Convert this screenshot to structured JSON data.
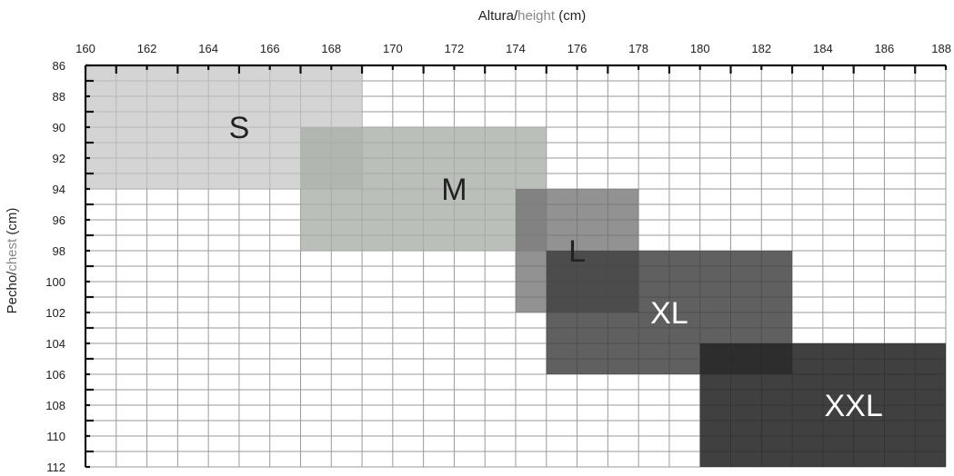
{
  "chart_data": {
    "type": "heatmap",
    "x_axis": {
      "label_main": "Altura/",
      "label_alt": "height",
      "label_unit": " (cm)",
      "min": 160,
      "max": 188,
      "tick_step": 2,
      "minor_step": 1,
      "position": "top"
    },
    "y_axis": {
      "label_main": "Pecho/",
      "label_alt": "chest",
      "label_unit": " (cm)",
      "min": 86,
      "max": 112,
      "tick_step": 2,
      "minor_step": 1,
      "inverted": true
    },
    "grid": true,
    "regions": [
      {
        "name": "S",
        "x": [
          160,
          169
        ],
        "y": [
          86,
          94
        ],
        "color": "#c4c4c3",
        "opacity": 0.72,
        "text_color": "#222222"
      },
      {
        "name": "M",
        "x": [
          167,
          175
        ],
        "y": [
          90,
          98
        ],
        "color": "#a6ada6",
        "opacity": 0.78,
        "text_color": "#222222"
      },
      {
        "name": "L",
        "x": [
          174,
          178
        ],
        "y": [
          94,
          102
        ],
        "color": "#6e6e6e",
        "opacity": 0.75,
        "text_color": "#222222"
      },
      {
        "name": "XL",
        "x": [
          175,
          183
        ],
        "y": [
          98,
          106
        ],
        "color": "#3d3d3d",
        "opacity": 0.82,
        "text_color": "#ffffff"
      },
      {
        "name": "XXL",
        "x": [
          180,
          188
        ],
        "y": [
          104,
          112
        ],
        "color": "#262626",
        "opacity": 0.88,
        "text_color": "#ffffff"
      }
    ]
  }
}
